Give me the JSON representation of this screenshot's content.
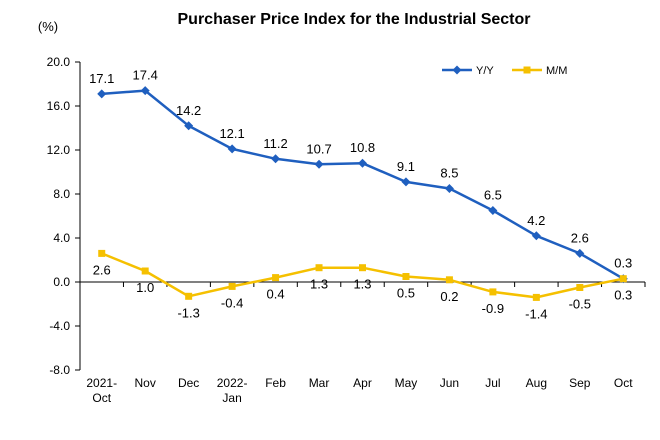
{
  "chart_data": {
    "type": "line",
    "title": "Purchaser Price Index for the Industrial Sector",
    "y_unit": "(%)",
    "ylim": [
      -8.0,
      20.0
    ],
    "y_ticks": [
      "20.0",
      "16.0",
      "12.0",
      "8.0",
      "4.0",
      "0.0",
      "-4.0",
      "-8.0"
    ],
    "y_tick_values": [
      20,
      16,
      12,
      8,
      4,
      0,
      -4,
      -8
    ],
    "categories": [
      [
        "2021-",
        "Oct"
      ],
      [
        "Nov"
      ],
      [
        "Dec"
      ],
      [
        "2022-",
        "Jan"
      ],
      [
        "Feb"
      ],
      [
        "Mar"
      ],
      [
        "Apr"
      ],
      [
        "May"
      ],
      [
        "Jun"
      ],
      [
        "Jul"
      ],
      [
        "Aug"
      ],
      [
        "Sep"
      ],
      [
        "Oct"
      ]
    ],
    "series": [
      {
        "name": "Y/Y",
        "color": "#1f5fbf",
        "marker": "diamond",
        "values": [
          17.1,
          17.4,
          14.2,
          12.1,
          11.2,
          10.7,
          10.8,
          9.1,
          8.5,
          6.5,
          4.2,
          2.6,
          0.3
        ],
        "labels": [
          "17.1",
          "17.4",
          "14.2",
          "12.1",
          "11.2",
          "10.7",
          "10.8",
          "9.1",
          "8.5",
          "6.5",
          "4.2",
          "2.6",
          "0.3"
        ]
      },
      {
        "name": "M/M",
        "color": "#f5c000",
        "marker": "square",
        "values": [
          2.6,
          1.0,
          -1.3,
          -0.4,
          0.4,
          1.3,
          1.3,
          0.5,
          0.2,
          -0.9,
          -1.4,
          -0.5,
          0.3
        ],
        "labels": [
          "2.6",
          "1.0",
          "-1.3",
          "-0.4",
          "0.4",
          "1.3",
          "1.3",
          "0.5",
          "0.2",
          "-0.9",
          "-1.4",
          "-0.5",
          "0.3"
        ]
      }
    ],
    "legend_position": "top-right",
    "grid": false
  }
}
